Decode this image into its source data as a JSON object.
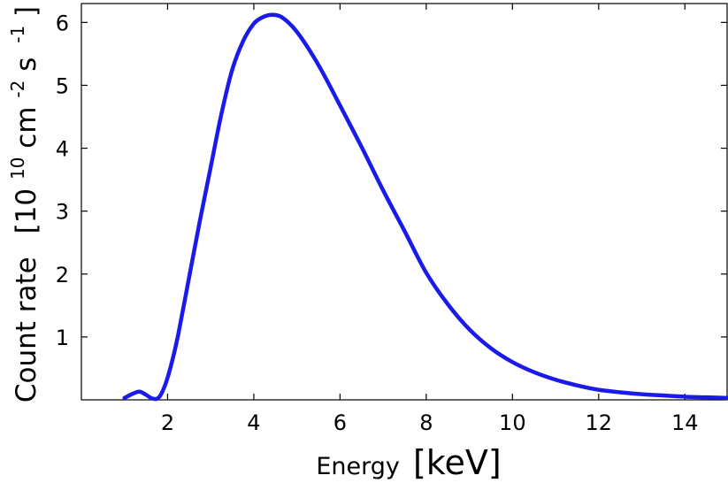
{
  "chart_data": {
    "type": "line",
    "title": "",
    "xlabel": "Energy",
    "xunit": "[keV]",
    "ylabel": "Count rate",
    "yunit_parts": [
      "[10",
      "10",
      "cm",
      "-2",
      "s",
      "-1",
      "]"
    ],
    "xlim": [
      0.0,
      15.0
    ],
    "ylim": [
      0.0,
      6.3
    ],
    "xticks": [
      2,
      4,
      6,
      8,
      10,
      12,
      14
    ],
    "yticks": [
      1,
      2,
      3,
      4,
      5,
      6
    ],
    "grid": false,
    "legend": "none",
    "line_color": "#1a1aeb",
    "series": [
      {
        "name": "",
        "x": [
          1.0,
          1.2,
          1.35,
          1.5,
          1.65,
          1.8,
          1.95,
          2.1,
          2.25,
          2.5,
          2.75,
          3.0,
          3.25,
          3.5,
          3.75,
          4.0,
          4.2,
          4.4,
          4.6,
          4.8,
          5.0,
          5.3,
          5.6,
          6.0,
          6.5,
          7.0,
          7.5,
          8.0,
          8.5,
          9.0,
          9.5,
          10.0,
          10.5,
          11.0,
          11.5,
          12.0,
          12.5,
          13.0,
          13.5,
          14.0,
          14.5,
          15.0
        ],
        "y": [
          0.03,
          0.1,
          0.13,
          0.08,
          0.02,
          0.04,
          0.25,
          0.6,
          1.05,
          1.95,
          2.85,
          3.7,
          4.55,
          5.25,
          5.7,
          5.98,
          6.08,
          6.12,
          6.1,
          6.0,
          5.85,
          5.55,
          5.2,
          4.68,
          4.02,
          3.33,
          2.68,
          2.02,
          1.52,
          1.12,
          0.82,
          0.6,
          0.44,
          0.32,
          0.23,
          0.16,
          0.12,
          0.09,
          0.07,
          0.05,
          0.04,
          0.03
        ]
      }
    ]
  }
}
